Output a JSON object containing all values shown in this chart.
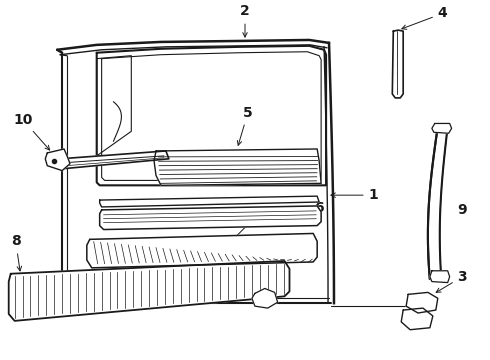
{
  "bg_color": "#ffffff",
  "lc": "#1a1a1a",
  "figsize": [
    4.9,
    3.6
  ],
  "dpi": 100,
  "fs": 10
}
